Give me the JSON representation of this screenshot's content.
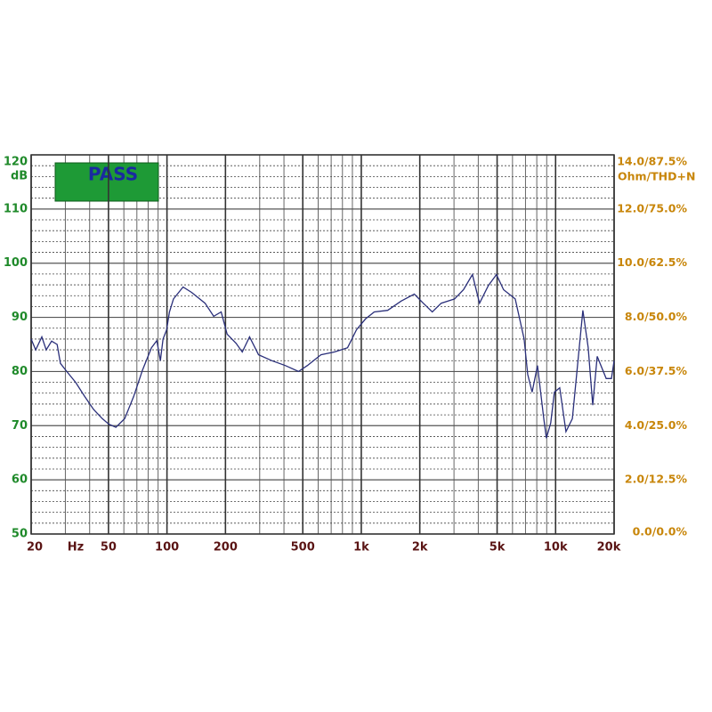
{
  "chart_data": {
    "type": "line",
    "badge": "PASS",
    "ylabel": "dB",
    "y2label": "Ohm/THD+N",
    "xlabel": "Hz",
    "log_x": true,
    "grid": true,
    "color": "#2a2f7a",
    "xlim": [
      20,
      20000
    ],
    "xticks": [
      20,
      50,
      100,
      200,
      500,
      {
        "value": 1000,
        "label": "1k"
      },
      {
        "value": 2000,
        "label": "2k"
      },
      {
        "value": 5000,
        "label": "5k"
      },
      {
        "value": 10000,
        "label": "10k"
      },
      {
        "value": 20000,
        "label": "20k"
      }
    ],
    "xgrid": [
      30,
      40,
      60,
      70,
      80,
      90,
      300,
      400,
      600,
      700,
      800,
      900,
      3000,
      4000,
      6000,
      7000,
      8000,
      9000
    ],
    "ylim": [
      50,
      120
    ],
    "yticks": [
      50,
      60,
      70,
      80,
      90,
      100,
      110,
      120
    ],
    "yminor": [
      52,
      54,
      56,
      58,
      62,
      64,
      66,
      68,
      72,
      74,
      76,
      78,
      82,
      84,
      86,
      88,
      92,
      94,
      96,
      98,
      102,
      104,
      106,
      108,
      112,
      114,
      116,
      118
    ],
    "y2lim": [
      0,
      14
    ],
    "y2ticks": [
      {
        "value": 0,
        "label": "0.0/0.0%"
      },
      {
        "value": 2,
        "label": "2.0/12.5%"
      },
      {
        "value": 4,
        "label": "4.0/25.0%"
      },
      {
        "value": 6,
        "label": "6.0/37.5%"
      },
      {
        "value": 8,
        "label": "8.0/50.0%"
      },
      {
        "value": 10,
        "label": "10.0/62.5%"
      },
      {
        "value": 12,
        "label": "12.0/75.0%"
      },
      {
        "value": 14,
        "label": "14.0/87.5%"
      }
    ],
    "x": [
      20,
      21.1,
      22.7,
      23.9,
      25.5,
      27.2,
      28.3,
      30.5,
      33.9,
      37.7,
      41.9,
      46.5,
      50.1,
      54.6,
      60.6,
      67.4,
      74.9,
      83.2,
      88.7,
      92.5,
      95.5,
      99.6,
      103,
      108,
      121,
      134,
      157,
      174,
      190,
      204,
      227,
      244,
      266,
      296,
      347,
      406,
      475,
      528,
      620,
      726,
      850,
      944,
      1050,
      1166,
      1367,
      1603,
      1875,
      2085,
      2318,
      2577,
      3020,
      3357,
      3732,
      4058,
      4511,
      4958,
      5396,
      6195,
      6887,
      7180,
      7570,
      8070,
      8690,
      8960,
      9440,
      9860,
      10500,
      11300,
      12200,
      12970,
      13810,
      14720,
      15520,
      16370,
      18200,
      19370,
      20000
    ],
    "values": [
      86,
      84,
      86.4,
      84,
      85.6,
      85,
      81.5,
      80,
      78,
      75.4,
      73,
      71.3,
      70.3,
      69.7,
      71.3,
      75.4,
      80.3,
      84.4,
      85.7,
      82,
      86,
      87.7,
      91,
      93.4,
      95.6,
      94.6,
      92.6,
      90.2,
      91,
      86.9,
      85.2,
      83.6,
      86.4,
      83.1,
      82,
      81.1,
      80,
      81.1,
      83.1,
      83.6,
      84.4,
      87.7,
      89.7,
      91,
      91.3,
      93,
      94.3,
      92.6,
      91,
      92.6,
      93.4,
      95.1,
      97.9,
      92.6,
      95.9,
      97.9,
      95.1,
      93.4,
      86,
      79.5,
      76.2,
      81.1,
      71.3,
      67.7,
      70.5,
      76.2,
      77,
      68.9,
      71.3,
      81.1,
      91.3,
      84.4,
      73.8,
      82.8,
      78.7,
      78.7,
      82
    ]
  }
}
